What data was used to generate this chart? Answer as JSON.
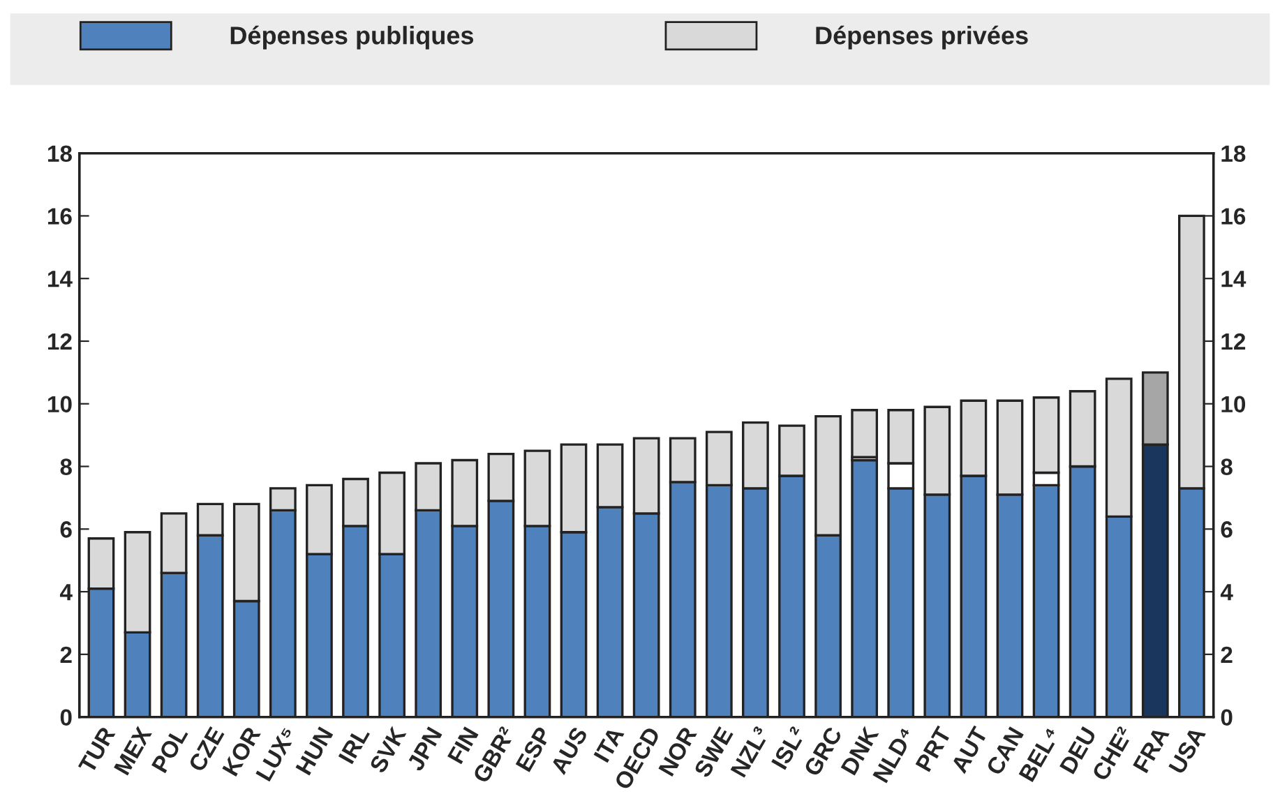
{
  "chart_data": {
    "type": "bar",
    "stacked": true,
    "categories": [
      "TUR",
      "MEX",
      "POL",
      "CZE",
      "KOR",
      "LUX⁵",
      "HUN",
      "IRL",
      "SVK",
      "JPN",
      "FIN",
      "GBR²",
      "ESP",
      "AUS",
      "ITA",
      "OECD",
      "NOR",
      "SWE",
      "NZL³",
      "ISL²",
      "GRC",
      "DNK",
      "NLD⁴",
      "PRT",
      "AUT",
      "CAN",
      "BEL⁴",
      "DEU",
      "CHE²",
      "FRA",
      "USA"
    ],
    "series": [
      {
        "name": "Dépenses publiques",
        "color": "#4f81bd",
        "colors": [
          "#4f81bd",
          "#4f81bd",
          "#4f81bd",
          "#4f81bd",
          "#4f81bd",
          "#4f81bd",
          "#4f81bd",
          "#4f81bd",
          "#4f81bd",
          "#4f81bd",
          "#4f81bd",
          "#4f81bd",
          "#4f81bd",
          "#4f81bd",
          "#4f81bd",
          "#4f81bd",
          "#4f81bd",
          "#4f81bd",
          "#4f81bd",
          "#4f81bd",
          "#4f81bd",
          "#4f81bd",
          "#4f81bd",
          "#4f81bd",
          "#4f81bd",
          "#4f81bd",
          "#4f81bd",
          "#4f81bd",
          "#4f81bd",
          "#1b365d",
          "#4f81bd"
        ],
        "values": [
          4.1,
          2.7,
          4.6,
          5.8,
          3.7,
          6.6,
          5.2,
          6.1,
          5.2,
          6.6,
          6.1,
          6.9,
          6.1,
          5.9,
          6.7,
          6.5,
          7.5,
          7.4,
          7.3,
          7.7,
          5.8,
          8.2,
          7.3,
          7.1,
          7.7,
          7.1,
          7.4,
          8.0,
          6.4,
          8.7,
          7.3
        ]
      },
      {
        "color": "#ffffff",
        "values": [
          null,
          null,
          null,
          null,
          null,
          null,
          null,
          null,
          null,
          null,
          null,
          null,
          null,
          null,
          null,
          null,
          null,
          null,
          null,
          null,
          null,
          0.1,
          0.8,
          null,
          null,
          null,
          0.4,
          null,
          null,
          null,
          null
        ]
      },
      {
        "name": "Dépenses privées",
        "color": "#d9d9d9",
        "colors": [
          "#d9d9d9",
          "#d9d9d9",
          "#d9d9d9",
          "#d9d9d9",
          "#d9d9d9",
          "#d9d9d9",
          "#d9d9d9",
          "#d9d9d9",
          "#d9d9d9",
          "#d9d9d9",
          "#d9d9d9",
          "#d9d9d9",
          "#d9d9d9",
          "#d9d9d9",
          "#d9d9d9",
          "#d9d9d9",
          "#d9d9d9",
          "#d9d9d9",
          "#d9d9d9",
          "#d9d9d9",
          "#d9d9d9",
          "#d9d9d9",
          "#d9d9d9",
          "#d9d9d9",
          "#d9d9d9",
          "#d9d9d9",
          "#d9d9d9",
          "#d9d9d9",
          "#d9d9d9",
          "#a6a6a6",
          "#d9d9d9"
        ],
        "values": [
          1.6,
          3.2,
          1.9,
          1.0,
          3.1,
          0.7,
          2.2,
          1.5,
          2.6,
          1.5,
          2.1,
          1.5,
          2.4,
          2.8,
          2.0,
          2.4,
          1.4,
          1.7,
          2.1,
          1.6,
          3.8,
          1.5,
          1.7,
          2.8,
          2.4,
          3.0,
          2.4,
          2.4,
          4.4,
          2.3,
          8.7
        ]
      }
    ],
    "ylim": [
      0,
      18
    ],
    "yticks": [
      0,
      2,
      4,
      6,
      8,
      10,
      12,
      14,
      16,
      18
    ],
    "y2lim": [
      0,
      18
    ],
    "y2ticks": [
      0,
      2,
      4,
      6,
      8,
      10,
      12,
      14,
      16,
      18
    ],
    "legend": "top",
    "grid": false
  }
}
